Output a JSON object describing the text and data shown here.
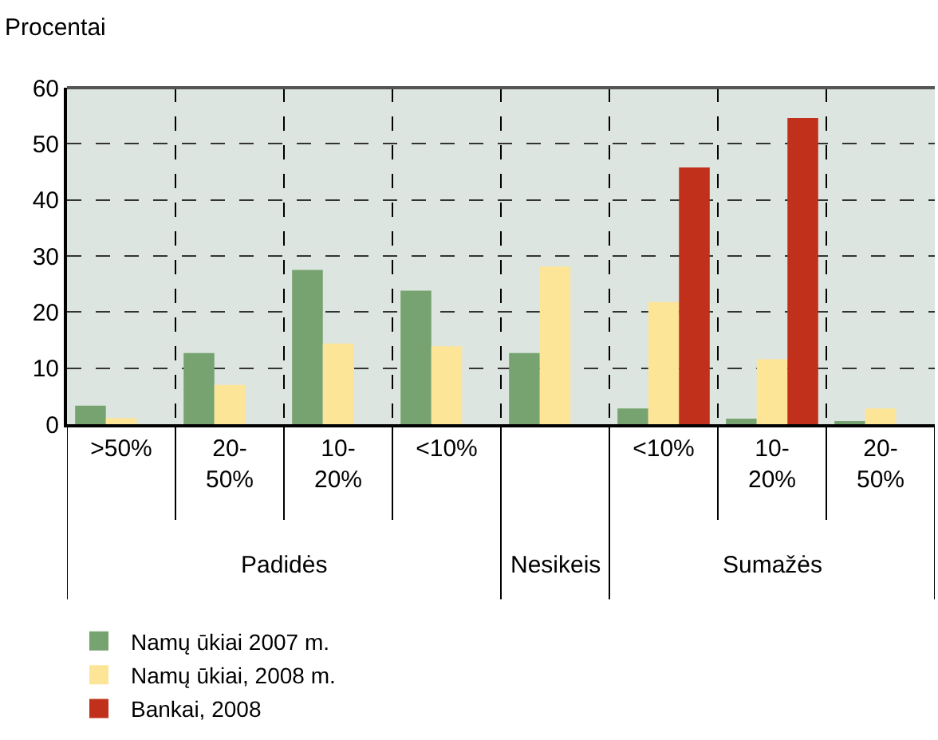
{
  "chart_data": {
    "type": "bar",
    "ylabel": "Procentai",
    "categories": [
      ">50%",
      "20-\n50%",
      "10-\n20%",
      "<10%",
      null,
      "<10%",
      "10-\n20%",
      "20-\n50%"
    ],
    "annotations": [
      "Padidės",
      "Nesikeis",
      "Sumažės"
    ],
    "series": [
      {
        "name": "Namų ūkiai 2007 m.",
        "color": "#76a36f",
        "values": [
          3.3,
          12.7,
          27.5,
          23.8,
          12.7,
          2.8,
          1.0,
          0.5
        ]
      },
      {
        "name": "Namų ūkiai, 2008 m.",
        "color": "#fde598",
        "values": [
          1.1,
          7.0,
          14.4,
          13.9,
          28.1,
          21.8,
          11.6,
          2.8
        ]
      },
      {
        "name": "Bankai, 2008",
        "color": "#c0301b",
        "values": [
          null,
          null,
          null,
          null,
          null,
          45.8,
          54.6,
          null
        ]
      }
    ],
    "ylim": [
      0,
      60
    ],
    "yticks": [
      0,
      10,
      20,
      30,
      40,
      50,
      60
    ],
    "grid": true,
    "legend": "bottom left"
  }
}
